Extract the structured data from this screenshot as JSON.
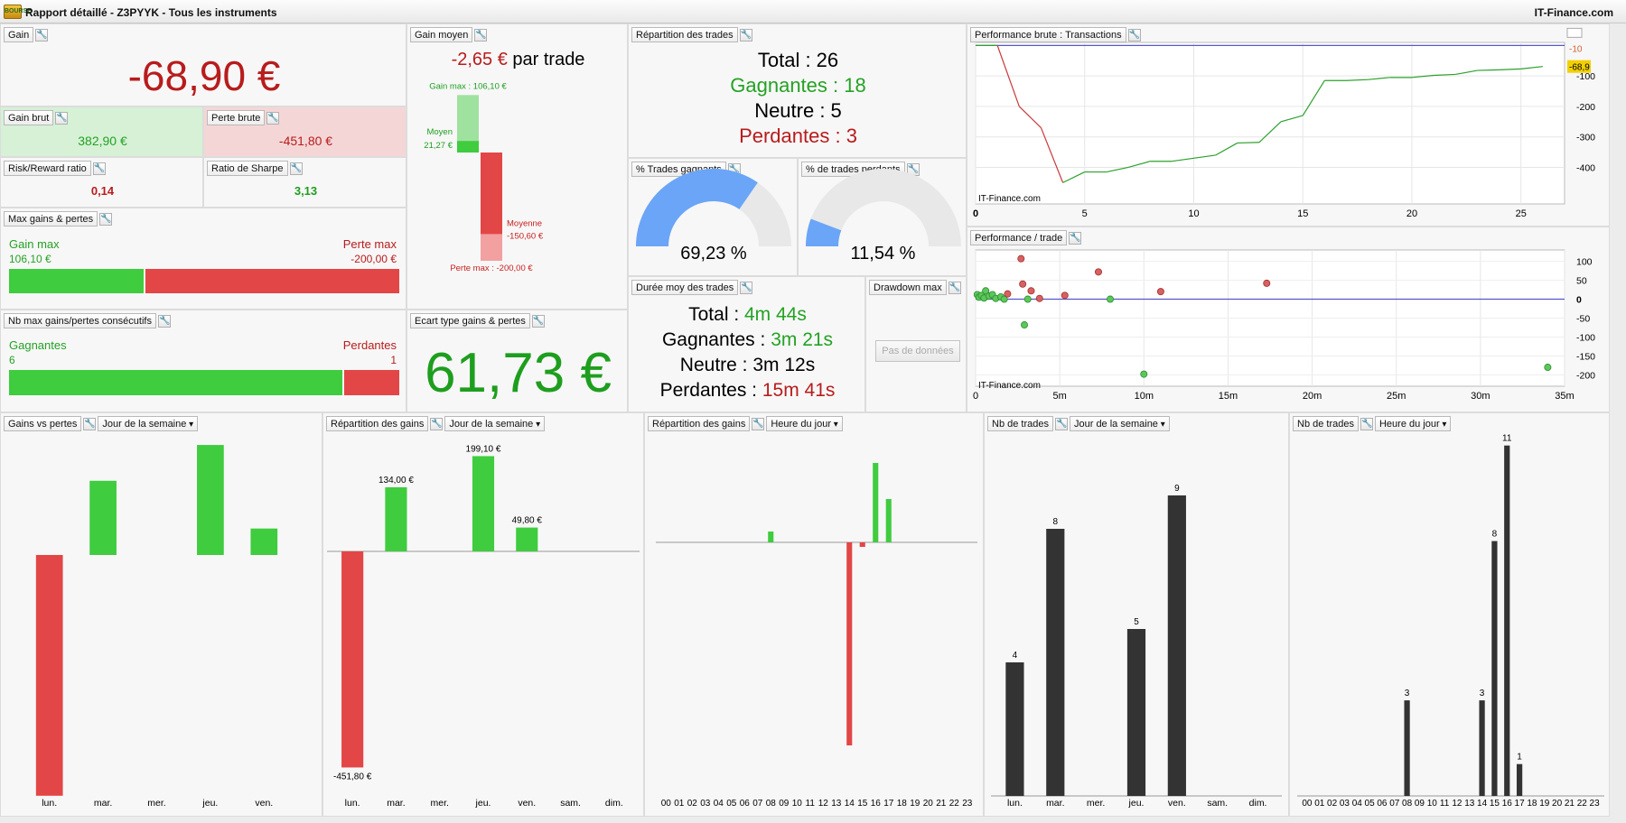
{
  "window": {
    "icon_label": "BOURSE",
    "title": "Rapport détaillé - Z3PYYK - Tous les instruments",
    "brand": "IT-Finance.com"
  },
  "icons": {
    "wrench": "wrench-icon",
    "dropdown": "chevron-down-icon"
  },
  "colors": {
    "gain": "#26b426",
    "loss": "#c81e1e",
    "bar_green": "#3fcc3f",
    "bar_red": "#e34646",
    "dark_bar": "#333333",
    "zero_line": "#5555cc",
    "gauge_blue": "#6aa5f7",
    "accent_text_green": "#1e9e1e"
  },
  "gain": {
    "title": "Gain",
    "value": "-68,90 €",
    "brut_title": "Gain brut",
    "brut_value": "382,90 €",
    "perte_title": "Perte brute",
    "perte_value": "-451,80 €"
  },
  "ratios": {
    "rr_title": "Risk/Reward ratio",
    "rr_value": "0,14",
    "sharpe_title": "Ratio de Sharpe",
    "sharpe_value": "3,13"
  },
  "maxgp": {
    "title": "Max gains & pertes",
    "gain_label": "Gain max",
    "gain_value": "106,10 €",
    "perte_label": "Perte max",
    "perte_value": "-200,00 €",
    "gain_abs": 106.1,
    "perte_abs": 200
  },
  "consec": {
    "title": "Nb max gains/pertes consécutifs",
    "gain_label": "Gagnantes",
    "gain_value": "6",
    "perte_label": "Perdantes",
    "perte_value": "1",
    "gain_count": 6,
    "perte_count": 1
  },
  "gainmoyen": {
    "title": "Gain moyen",
    "value": "-2,65 €",
    "suffix": " par trade",
    "gain_max_label": "Gain max : 106,10 €",
    "moyen_label": "Moyen",
    "moyen_value": "21,27 €",
    "moyenne_label": "Moyenne",
    "moyenne_value": "-150,60 €",
    "perte_max_label": "Perte max : -200,00 €",
    "gain_max": 106.1,
    "gain_moyen": 21.27,
    "perte_moyenne": -150.6,
    "perte_max": -200
  },
  "ecart": {
    "title": "Ecart type gains & pertes",
    "value": "61,73 €"
  },
  "repartition": {
    "title": "Répartition des trades",
    "total": "Total : 26",
    "gagnantes": "Gagnantes : 18",
    "neutre": "Neutre : 5",
    "perdantes": "Perdantes : 3"
  },
  "gauge_win": {
    "title": "% Trades gagnants",
    "label": "69,23 %",
    "fraction": 0.6923
  },
  "gauge_lose": {
    "title": "% de trades perdants",
    "label": "11,54 %",
    "fraction": 0.1154
  },
  "duree": {
    "title": "Durée moy des trades",
    "total_label": "Total : ",
    "total_value": "4m 44s",
    "gagnantes_label": "Gagnantes : ",
    "gagnantes_value": "3m 21s",
    "neutre_label": "Neutre : 3m 12s",
    "perdantes_label": "Perdantes : ",
    "perdantes_value": "15m 41s"
  },
  "drawdown": {
    "title": "Drawdown max",
    "button": "Pas de données"
  },
  "perf_brute": {
    "title": "Performance brute : Transactions",
    "watermark": "IT-Finance.com",
    "last_value_label": "-68,9",
    "top_label": "-10"
  },
  "perf_trade": {
    "title": "Performance / trade",
    "watermark": "IT-Finance.com"
  },
  "bottom": {
    "p1": {
      "title": "Gains vs pertes",
      "dropdown": "Jour de la semaine"
    },
    "p2": {
      "title": "Répartition des gains",
      "dropdown": "Jour de la semaine"
    },
    "p3": {
      "title": "Répartition des gains",
      "dropdown": "Heure du jour"
    },
    "p4": {
      "title": "Nb de trades",
      "dropdown": "Jour de la semaine"
    },
    "p5": {
      "title": "Nb de trades",
      "dropdown": "Heure du jour"
    }
  },
  "chart_data": [
    {
      "id": "perf_brute",
      "type": "line",
      "xlim": [
        0,
        27
      ],
      "ylim": [
        -520,
        10
      ],
      "x_ticks": [
        "0",
        "5",
        "10",
        "15",
        "20",
        "25"
      ],
      "x_tick_values": [
        0,
        5,
        10,
        15,
        20,
        25
      ],
      "y_ticks": [
        "-100",
        "-200",
        "-300",
        "-400"
      ],
      "y_tick_values": [
        -100,
        -200,
        -300,
        -400
      ],
      "zero_label": "0",
      "x": [
        0,
        1,
        2,
        3,
        4,
        5,
        6,
        7,
        8,
        9,
        10,
        11,
        12,
        13,
        14,
        15,
        16,
        17,
        18,
        19,
        20,
        21,
        22,
        23,
        24,
        25,
        26
      ],
      "y": [
        0,
        0,
        -200,
        -270,
        -450,
        -415,
        -415,
        -400,
        -380,
        -380,
        -370,
        -360,
        -320,
        -318,
        -250,
        -230,
        -115,
        -115,
        -112,
        -105,
        -105,
        -98,
        -95,
        -82,
        -80,
        -77,
        -69
      ]
    },
    {
      "id": "perf_trade",
      "type": "scatter",
      "xlim": [
        0,
        35
      ],
      "ylim": [
        -230,
        130
      ],
      "x_ticks": [
        "0",
        "5m",
        "10m",
        "15m",
        "20m",
        "25m",
        "30m",
        "35m"
      ],
      "x_tick_values": [
        0,
        5,
        10,
        15,
        20,
        25,
        30,
        35
      ],
      "y_ticks": [
        "100",
        "50",
        "0",
        "-50",
        "-100",
        "-150",
        "-200"
      ],
      "y_tick_values": [
        100,
        50,
        0,
        -50,
        -100,
        -150,
        -200
      ],
      "points": [
        {
          "x": 0.1,
          "y": 12,
          "s": "w"
        },
        {
          "x": 0.2,
          "y": 5,
          "s": "w"
        },
        {
          "x": 0.35,
          "y": 10,
          "s": "w"
        },
        {
          "x": 0.5,
          "y": 3,
          "s": "w"
        },
        {
          "x": 0.6,
          "y": 22,
          "s": "w"
        },
        {
          "x": 0.8,
          "y": 8,
          "s": "w"
        },
        {
          "x": 1.0,
          "y": 12,
          "s": "w"
        },
        {
          "x": 1.2,
          "y": 2,
          "s": "w"
        },
        {
          "x": 1.5,
          "y": 6,
          "s": "w"
        },
        {
          "x": 1.7,
          "y": 0,
          "s": "w"
        },
        {
          "x": 1.9,
          "y": 14,
          "s": "l"
        },
        {
          "x": 2.7,
          "y": 107,
          "s": "l"
        },
        {
          "x": 2.8,
          "y": 40,
          "s": "l"
        },
        {
          "x": 2.9,
          "y": -68,
          "s": "w"
        },
        {
          "x": 3.1,
          "y": 0,
          "s": "w"
        },
        {
          "x": 3.3,
          "y": 22,
          "s": "l"
        },
        {
          "x": 3.8,
          "y": 2,
          "s": "l"
        },
        {
          "x": 5.3,
          "y": 10,
          "s": "l"
        },
        {
          "x": 7.3,
          "y": 72,
          "s": "l"
        },
        {
          "x": 8.0,
          "y": 0,
          "s": "w"
        },
        {
          "x": 10.0,
          "y": -198,
          "s": "w"
        },
        {
          "x": 11.0,
          "y": 20,
          "s": "l"
        },
        {
          "x": 17.3,
          "y": 42,
          "s": "l"
        },
        {
          "x": 34.0,
          "y": -180,
          "s": "w"
        }
      ]
    },
    {
      "id": "gains_vs_pertes",
      "type": "bar",
      "categories": [
        "lun.",
        "mar.",
        "mer.",
        "jeu.",
        "ven."
      ],
      "series": [
        {
          "name": "gains",
          "values": [
            0,
            71.5,
            0,
            106,
            25.5
          ]
        },
        {
          "name": "pertes",
          "values": [
            -232,
            0,
            0,
            0,
            0
          ]
        }
      ]
    },
    {
      "id": "repartition_jour",
      "type": "bar",
      "categories": [
        "lun.",
        "mar.",
        "mer.",
        "jeu.",
        "ven.",
        "sam.",
        "dim."
      ],
      "values": [
        -451.8,
        134,
        0,
        199.1,
        49.8,
        0,
        0
      ],
      "value_labels": [
        "-451,80 €",
        "134,00 €",
        "",
        "199,10 €",
        "49,80 €",
        "",
        ""
      ]
    },
    {
      "id": "repartition_heure",
      "type": "bar",
      "categories": [
        "00",
        "01",
        "02",
        "03",
        "04",
        "05",
        "06",
        "07",
        "08",
        "09",
        "10",
        "11",
        "12",
        "13",
        "14",
        "15",
        "16",
        "17",
        "18",
        "19",
        "20",
        "21",
        "22",
        "23"
      ],
      "values": [
        0,
        0,
        0,
        0,
        0,
        0,
        0,
        0,
        12,
        0,
        0,
        0,
        0,
        0,
        -225,
        -5,
        88,
        48,
        0,
        0,
        0,
        0,
        0,
        0
      ]
    },
    {
      "id": "nb_jour",
      "type": "bar",
      "categories": [
        "lun.",
        "mar.",
        "mer.",
        "jeu.",
        "ven.",
        "sam.",
        "dim."
      ],
      "values": [
        4,
        8,
        0,
        5,
        9,
        0,
        0
      ],
      "value_labels": [
        "4",
        "8",
        "",
        "5",
        "9",
        "",
        ""
      ]
    },
    {
      "id": "nb_heure",
      "type": "bar",
      "categories": [
        "00",
        "01",
        "02",
        "03",
        "04",
        "05",
        "06",
        "07",
        "08",
        "09",
        "10",
        "11",
        "12",
        "13",
        "14",
        "15",
        "16",
        "17",
        "18",
        "19",
        "20",
        "21",
        "22",
        "23"
      ],
      "values": [
        0,
        0,
        0,
        0,
        0,
        0,
        0,
        0,
        3,
        0,
        0,
        0,
        0,
        0,
        3,
        8,
        11,
        1,
        0,
        0,
        0,
        0,
        0,
        0
      ],
      "value_labels": [
        "",
        "",
        "",
        "",
        "",
        "",
        "",
        "",
        "3",
        "",
        "",
        "",
        "",
        "",
        "3",
        "8",
        "11",
        "1",
        "",
        "",
        "",
        "",
        "",
        ""
      ]
    }
  ]
}
